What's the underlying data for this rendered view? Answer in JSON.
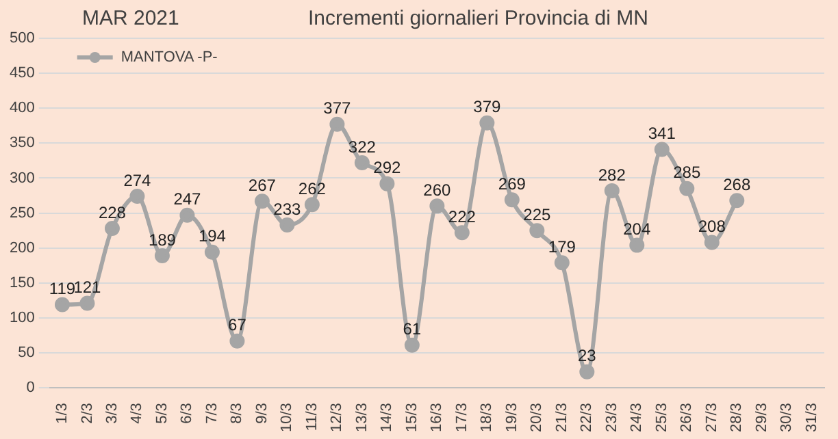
{
  "chart_data": {
    "type": "line",
    "title": "Incrementi giornalieri Provincia di MN",
    "annotations": [
      "MAR 2021"
    ],
    "categories": [
      "1/3",
      "2/3",
      "3/3",
      "4/3",
      "5/3",
      "6/3",
      "7/3",
      "8/3",
      "9/3",
      "10/3",
      "11/3",
      "12/3",
      "13/3",
      "14/3",
      "15/3",
      "16/3",
      "17/3",
      "18/3",
      "19/3",
      "20/3",
      "21/3",
      "22/3",
      "23/3",
      "24/3",
      "25/3",
      "26/3",
      "27/3",
      "28/3",
      "29/3",
      "30/3",
      "31/3"
    ],
    "series": [
      {
        "name": "MANTOVA -P-",
        "color": "#a5a5a5",
        "values": [
          119,
          121,
          228,
          274,
          189,
          247,
          194,
          67,
          267,
          233,
          262,
          377,
          322,
          292,
          61,
          260,
          222,
          379,
          269,
          225,
          179,
          23,
          282,
          204,
          341,
          285,
          208,
          268,
          null,
          null,
          null
        ]
      }
    ],
    "ylim": [
      0,
      500
    ],
    "yticks": [
      0,
      50,
      100,
      150,
      200,
      250,
      300,
      350,
      400,
      450,
      500
    ],
    "grid": "y",
    "legend": "top left",
    "marker": "circle",
    "line_style": "solid",
    "data_labels": true
  }
}
